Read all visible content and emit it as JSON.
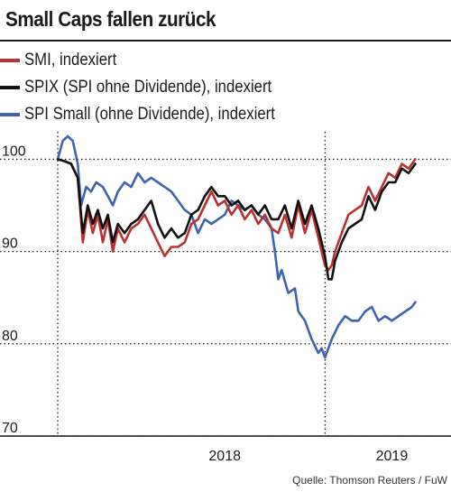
{
  "title": "Small Caps fallen zurück",
  "source": "Quelle: Thomson Reuters / FuW",
  "colors": {
    "smi": "#b83232",
    "spix": "#111111",
    "spi_small": "#3d64ad",
    "grid": "#222222"
  },
  "chart_data": {
    "type": "line",
    "title": "Small Caps fallen zurück",
    "xlabel": "",
    "ylabel": "",
    "ylim": [
      70,
      102
    ],
    "xlim": [
      2017.0,
      2019.3
    ],
    "yticks": [
      70,
      80,
      90,
      100
    ],
    "xticks": [
      {
        "value": 2018.0,
        "label": "2018"
      },
      {
        "value": 2019.0,
        "label": "2019"
      }
    ],
    "grid": true,
    "legend_position": "top",
    "series": [
      {
        "key": "smi",
        "name": "SMI, indexiert",
        "points": [
          [
            2017.0,
            100.0
          ],
          [
            2017.04,
            99.8
          ],
          [
            2017.08,
            99.5
          ],
          [
            2017.12,
            98.0
          ],
          [
            2017.15,
            91.0
          ],
          [
            2017.18,
            94.5
          ],
          [
            2017.21,
            92.0
          ],
          [
            2017.24,
            94.0
          ],
          [
            2017.27,
            91.0
          ],
          [
            2017.3,
            93.5
          ],
          [
            2017.33,
            90.0
          ],
          [
            2017.36,
            92.5
          ],
          [
            2017.4,
            91.0
          ],
          [
            2017.44,
            92.5
          ],
          [
            2017.48,
            93.0
          ],
          [
            2017.52,
            94.0
          ],
          [
            2017.56,
            92.5
          ],
          [
            2017.6,
            91.0
          ],
          [
            2017.64,
            89.5
          ],
          [
            2017.68,
            90.5
          ],
          [
            2017.72,
            90.5
          ],
          [
            2017.76,
            91.0
          ],
          [
            2017.8,
            93.0
          ],
          [
            2017.84,
            93.5
          ],
          [
            2017.88,
            95.0
          ],
          [
            2017.92,
            96.5
          ],
          [
            2017.96,
            95.0
          ],
          [
            2018.0,
            95.5
          ],
          [
            2018.04,
            94.0
          ],
          [
            2018.08,
            95.0
          ],
          [
            2018.12,
            93.5
          ],
          [
            2018.16,
            94.5
          ],
          [
            2018.2,
            93.0
          ],
          [
            2018.24,
            94.0
          ],
          [
            2018.28,
            92.5
          ],
          [
            2018.32,
            92.0
          ],
          [
            2018.36,
            94.0
          ],
          [
            2018.4,
            91.5
          ],
          [
            2018.44,
            95.0
          ],
          [
            2018.48,
            92.0
          ],
          [
            2018.52,
            94.5
          ],
          [
            2018.56,
            91.5
          ],
          [
            2018.6,
            88.5
          ],
          [
            2018.62,
            88.0
          ],
          [
            2018.64,
            88.5
          ],
          [
            2018.66,
            90.0
          ],
          [
            2018.7,
            92.0
          ],
          [
            2018.74,
            94.0
          ],
          [
            2018.78,
            94.5
          ],
          [
            2018.82,
            95.0
          ],
          [
            2018.86,
            97.0
          ],
          [
            2018.9,
            95.5
          ],
          [
            2018.94,
            97.0
          ],
          [
            2018.98,
            98.5
          ],
          [
            2019.02,
            98.0
          ],
          [
            2019.06,
            99.5
          ],
          [
            2019.1,
            99.0
          ],
          [
            2019.14,
            100.0
          ]
        ]
      },
      {
        "key": "spix",
        "name": "SPIX (SPI ohne Dividende), indexiert",
        "points": [
          [
            2017.0,
            100.0
          ],
          [
            2017.04,
            99.8
          ],
          [
            2017.08,
            99.5
          ],
          [
            2017.12,
            98.0
          ],
          [
            2017.15,
            92.0
          ],
          [
            2017.18,
            95.0
          ],
          [
            2017.21,
            93.0
          ],
          [
            2017.24,
            94.5
          ],
          [
            2017.27,
            92.5
          ],
          [
            2017.3,
            94.0
          ],
          [
            2017.33,
            91.0
          ],
          [
            2017.36,
            93.0
          ],
          [
            2017.4,
            92.0
          ],
          [
            2017.44,
            93.0
          ],
          [
            2017.48,
            93.5
          ],
          [
            2017.52,
            94.5
          ],
          [
            2017.56,
            95.5
          ],
          [
            2017.6,
            93.0
          ],
          [
            2017.64,
            91.5
          ],
          [
            2017.68,
            92.5
          ],
          [
            2017.72,
            91.5
          ],
          [
            2017.76,
            92.0
          ],
          [
            2017.8,
            94.0
          ],
          [
            2017.84,
            94.5
          ],
          [
            2017.88,
            96.0
          ],
          [
            2017.92,
            97.0
          ],
          [
            2017.96,
            96.0
          ],
          [
            2018.0,
            96.0
          ],
          [
            2018.04,
            95.0
          ],
          [
            2018.08,
            95.5
          ],
          [
            2018.12,
            94.5
          ],
          [
            2018.16,
            95.0
          ],
          [
            2018.2,
            94.0
          ],
          [
            2018.24,
            95.0
          ],
          [
            2018.28,
            93.5
          ],
          [
            2018.32,
            93.5
          ],
          [
            2018.36,
            95.0
          ],
          [
            2018.4,
            92.5
          ],
          [
            2018.44,
            95.5
          ],
          [
            2018.48,
            93.0
          ],
          [
            2018.52,
            95.0
          ],
          [
            2018.56,
            92.5
          ],
          [
            2018.6,
            89.5
          ],
          [
            2018.62,
            87.0
          ],
          [
            2018.64,
            87.0
          ],
          [
            2018.66,
            89.0
          ],
          [
            2018.7,
            91.0
          ],
          [
            2018.74,
            92.5
          ],
          [
            2018.78,
            93.0
          ],
          [
            2018.82,
            93.5
          ],
          [
            2018.86,
            96.0
          ],
          [
            2018.9,
            94.5
          ],
          [
            2018.94,
            96.5
          ],
          [
            2018.98,
            97.5
          ],
          [
            2019.02,
            97.5
          ],
          [
            2019.06,
            99.0
          ],
          [
            2019.1,
            98.5
          ],
          [
            2019.14,
            99.5
          ]
        ]
      },
      {
        "key": "spi_small",
        "name": "SPI Small (ohne Dividende), indexiert",
        "points": [
          [
            2017.0,
            100.0
          ],
          [
            2017.03,
            102.0
          ],
          [
            2017.06,
            102.5
          ],
          [
            2017.09,
            102.0
          ],
          [
            2017.12,
            99.5
          ],
          [
            2017.14,
            95.0
          ],
          [
            2017.17,
            97.0
          ],
          [
            2017.2,
            96.5
          ],
          [
            2017.23,
            97.5
          ],
          [
            2017.27,
            97.0
          ],
          [
            2017.3,
            96.0
          ],
          [
            2017.33,
            95.0
          ],
          [
            2017.36,
            96.5
          ],
          [
            2017.4,
            97.5
          ],
          [
            2017.44,
            97.0
          ],
          [
            2017.48,
            98.5
          ],
          [
            2017.52,
            97.5
          ],
          [
            2017.56,
            98.0
          ],
          [
            2017.6,
            97.5
          ],
          [
            2017.64,
            97.0
          ],
          [
            2017.68,
            96.5
          ],
          [
            2017.72,
            95.5
          ],
          [
            2017.76,
            94.5
          ],
          [
            2017.8,
            94.0
          ],
          [
            2017.84,
            92.0
          ],
          [
            2017.88,
            93.5
          ],
          [
            2017.92,
            93.0
          ],
          [
            2017.96,
            93.5
          ],
          [
            2018.0,
            94.0
          ],
          [
            2018.04,
            95.5
          ],
          [
            2018.08,
            95.0
          ],
          [
            2018.12,
            94.5
          ],
          [
            2018.16,
            95.0
          ],
          [
            2018.2,
            94.0
          ],
          [
            2018.24,
            93.5
          ],
          [
            2018.28,
            92.5
          ],
          [
            2018.3,
            90.0
          ],
          [
            2018.32,
            87.0
          ],
          [
            2018.34,
            88.0
          ],
          [
            2018.38,
            85.5
          ],
          [
            2018.42,
            86.0
          ],
          [
            2018.44,
            83.5
          ],
          [
            2018.48,
            82.5
          ],
          [
            2018.52,
            80.5
          ],
          [
            2018.56,
            79.0
          ],
          [
            2018.58,
            79.5
          ],
          [
            2018.6,
            78.5
          ],
          [
            2018.64,
            80.5
          ],
          [
            2018.68,
            82.0
          ],
          [
            2018.72,
            83.0
          ],
          [
            2018.76,
            82.5
          ],
          [
            2018.8,
            82.5
          ],
          [
            2018.84,
            83.5
          ],
          [
            2018.88,
            84.0
          ],
          [
            2018.92,
            82.5
          ],
          [
            2018.96,
            83.0
          ],
          [
            2019.0,
            82.5
          ],
          [
            2019.04,
            83.0
          ],
          [
            2019.08,
            83.5
          ],
          [
            2019.12,
            84.0
          ],
          [
            2019.14,
            84.5
          ]
        ]
      }
    ]
  }
}
